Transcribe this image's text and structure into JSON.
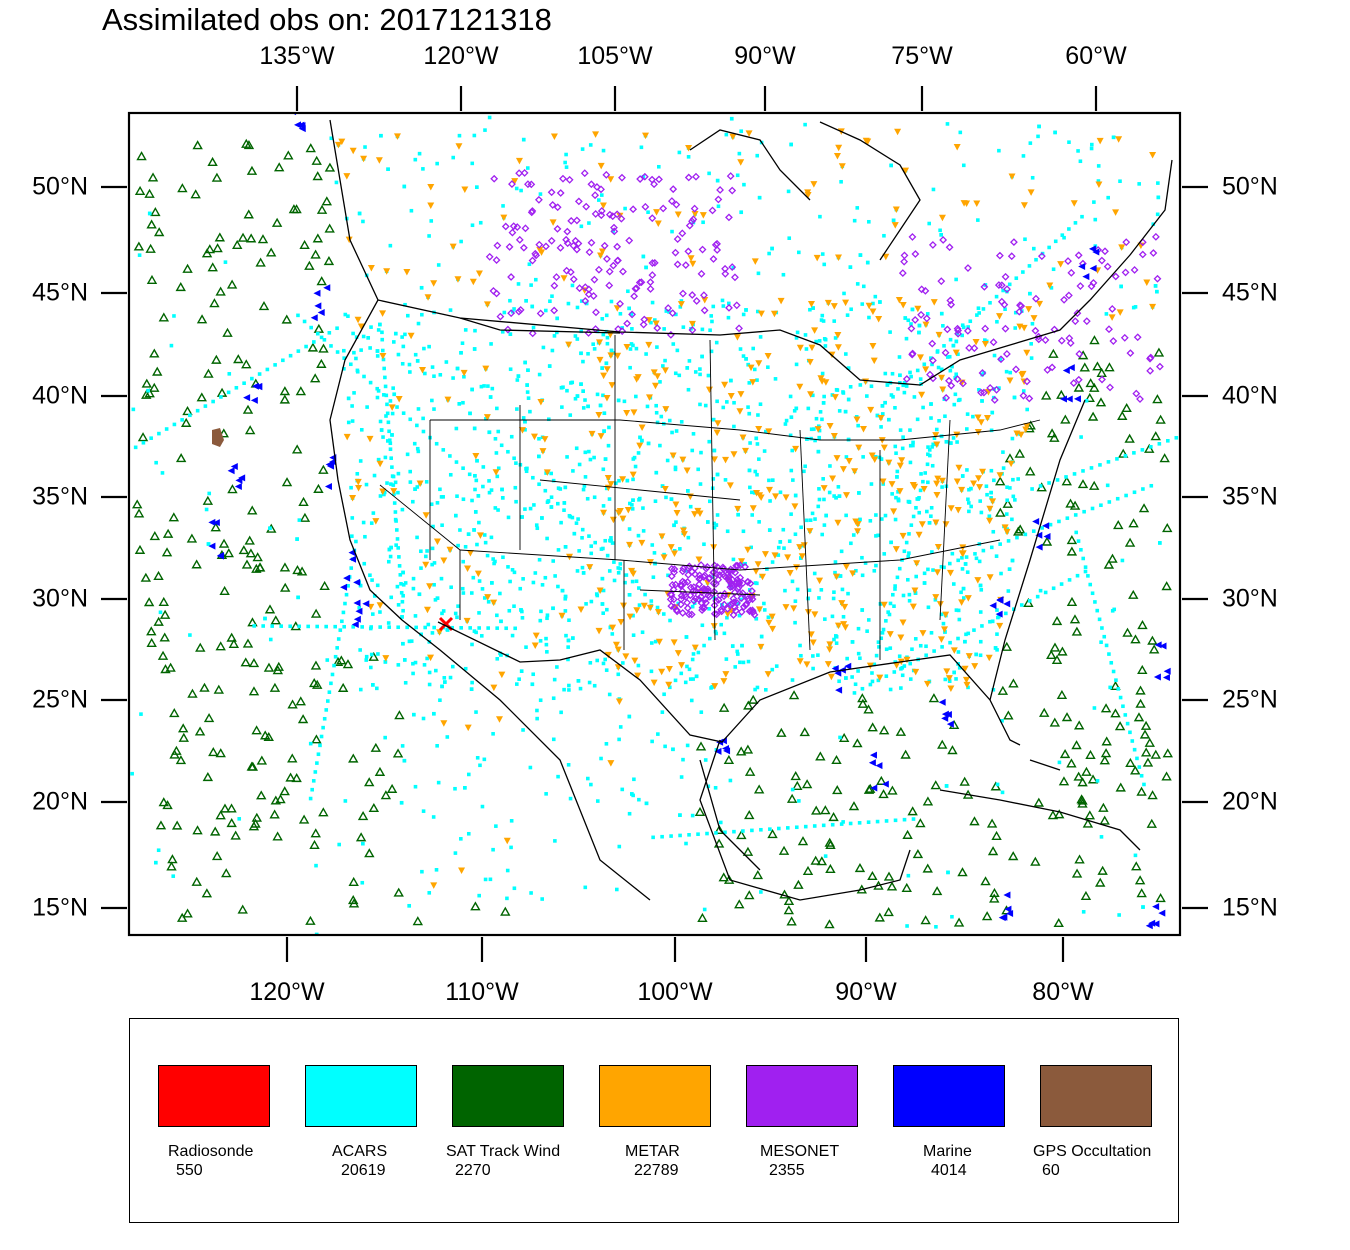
{
  "title": "Assimilated obs on: 2017121318",
  "map": {
    "top_lon_labels": [
      "135°W",
      "120°W",
      "105°W",
      "90°W",
      "75°W",
      "60°W"
    ],
    "bottom_lon_labels": [
      "120°W",
      "110°W",
      "100°W",
      "90°W",
      "80°W"
    ],
    "lat_labels": [
      "50°N",
      "45°N",
      "40°N",
      "35°N",
      "30°N",
      "25°N",
      "20°N",
      "15°N"
    ]
  },
  "legend": [
    {
      "name": "Radiosonde",
      "count": "550",
      "color": "#ff0000",
      "marker": "x"
    },
    {
      "name": "ACARS",
      "count": "20619",
      "color": "#00ffff",
      "marker": "square"
    },
    {
      "name": "SAT Track Wind",
      "count": "2270",
      "color": "#006400",
      "marker": "triangle-up"
    },
    {
      "name": "METAR",
      "count": "22789",
      "color": "#ffa500",
      "marker": "triangle-down"
    },
    {
      "name": "MESONET",
      "count": "2355",
      "color": "#a020f0",
      "marker": "diamond"
    },
    {
      "name": "Marine",
      "count": "4014",
      "color": "#0000ff",
      "marker": "triangle-left"
    },
    {
      "name": "GPS Occultation",
      "count": "60",
      "color": "#8b5a3c",
      "marker": "circle"
    }
  ]
}
